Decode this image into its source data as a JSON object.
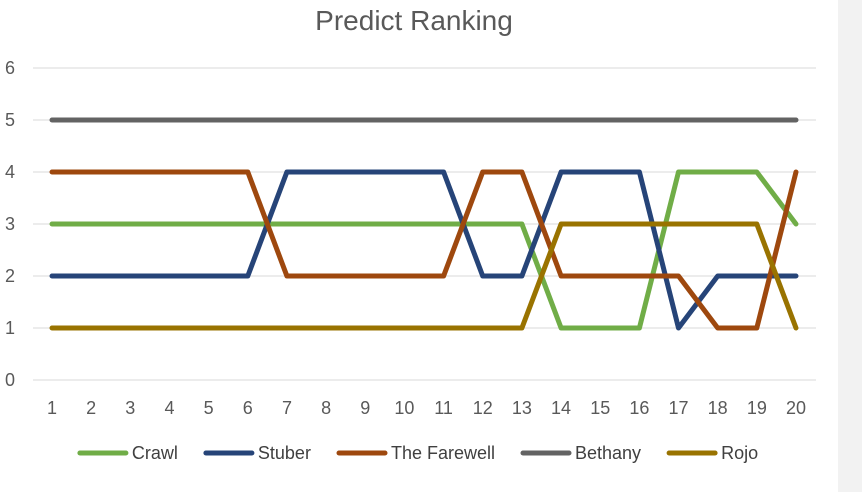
{
  "chart_data": {
    "type": "line",
    "title": "Predict Ranking",
    "xlabel": "",
    "ylabel": "",
    "categories": [
      "1",
      "2",
      "3",
      "4",
      "5",
      "6",
      "7",
      "8",
      "9",
      "10",
      "11",
      "12",
      "13",
      "14",
      "15",
      "16",
      "17",
      "18",
      "19",
      "20"
    ],
    "ylim": [
      0,
      6
    ],
    "yticks": [
      "0",
      "1",
      "2",
      "3",
      "4",
      "5",
      "6"
    ],
    "grid": true,
    "legend_position": "bottom",
    "series": [
      {
        "name": "Crawl",
        "color": "#70ad47",
        "values": [
          3,
          3,
          3,
          3,
          3,
          3,
          3,
          3,
          3,
          3,
          3,
          3,
          3,
          1,
          1,
          1,
          4,
          4,
          4,
          3
        ]
      },
      {
        "name": "Stuber",
        "color": "#264478",
        "values": [
          2,
          2,
          2,
          2,
          2,
          2,
          4,
          4,
          4,
          4,
          4,
          2,
          2,
          4,
          4,
          4,
          1,
          2,
          2,
          2
        ]
      },
      {
        "name": "The Farewell",
        "color": "#9e480e",
        "values": [
          4,
          4,
          4,
          4,
          4,
          4,
          2,
          2,
          2,
          2,
          2,
          4,
          4,
          2,
          2,
          2,
          2,
          1,
          1,
          4
        ]
      },
      {
        "name": "Bethany",
        "color": "#636363",
        "values": [
          5,
          5,
          5,
          5,
          5,
          5,
          5,
          5,
          5,
          5,
          5,
          5,
          5,
          5,
          5,
          5,
          5,
          5,
          5,
          5
        ]
      },
      {
        "name": "Rojo",
        "color": "#997300",
        "values": [
          1,
          1,
          1,
          1,
          1,
          1,
          1,
          1,
          1,
          1,
          1,
          1,
          1,
          3,
          3,
          3,
          3,
          3,
          3,
          1
        ]
      }
    ]
  }
}
